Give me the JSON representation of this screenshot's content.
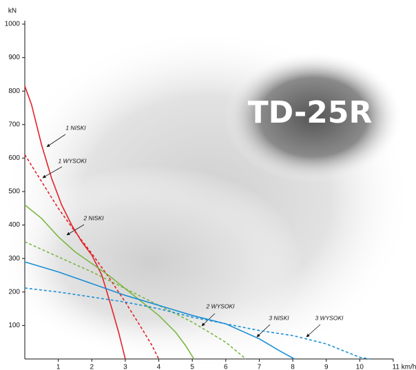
{
  "chart_data": {
    "type": "line",
    "title": "TD-25R",
    "y_label": "kN",
    "xlim": [
      0,
      11
    ],
    "ylim": [
      0,
      1000
    ],
    "xticks": [
      1,
      2,
      3,
      4,
      5,
      6,
      7,
      8,
      9,
      10,
      {
        "value": 11,
        "label": "11 km/h"
      }
    ],
    "yticks": [
      100,
      200,
      300,
      400,
      500,
      600,
      700,
      800,
      900,
      1000
    ],
    "series": [
      {
        "name": "1 NISKI",
        "color": "#e32129",
        "style": "solid",
        "x": [
          0,
          0.2,
          0.5,
          0.8,
          1.1,
          1.4,
          1.7,
          2.0,
          2.3,
          2.6,
          2.8,
          2.95,
          3.0
        ],
        "values": [
          815,
          760,
          640,
          540,
          460,
          400,
          350,
          310,
          250,
          150,
          80,
          20,
          0
        ]
      },
      {
        "name": "1 WYSOKI",
        "color": "#e32129",
        "style": "dashed",
        "x": [
          0,
          0.5,
          1,
          1.5,
          2,
          2.5,
          3,
          3.5,
          3.8,
          4
        ],
        "values": [
          610,
          530,
          450,
          380,
          315,
          245,
          170,
          90,
          40,
          0
        ]
      },
      {
        "name": "2 NISKI",
        "color": "#7ab640",
        "style": "solid",
        "x": [
          0,
          0.5,
          1,
          1.5,
          2,
          2.5,
          3,
          3.5,
          4,
          4.5,
          4.8,
          5.05
        ],
        "values": [
          460,
          420,
          365,
          320,
          285,
          250,
          210,
          170,
          130,
          80,
          40,
          0
        ]
      },
      {
        "name": "2 WYSOKI",
        "color": "#7ab640",
        "style": "dashed",
        "x": [
          0,
          1,
          2,
          3,
          4,
          5,
          6,
          6.6
        ],
        "values": [
          350,
          305,
          260,
          210,
          160,
          110,
          50,
          0
        ]
      },
      {
        "name": "3 NISKI",
        "color": "#1a8fd6",
        "style": "solid",
        "x": [
          0,
          1,
          2,
          3,
          4,
          5,
          6,
          7,
          7.6,
          8.05
        ],
        "values": [
          290,
          260,
          225,
          190,
          160,
          130,
          105,
          60,
          25,
          0
        ]
      },
      {
        "name": "3 WYSOKI",
        "color": "#1a8fd6",
        "style": "dashed",
        "x": [
          0,
          1,
          2,
          3,
          4,
          5,
          6,
          7,
          8,
          9,
          10,
          10.3
        ],
        "values": [
          212,
          200,
          185,
          170,
          150,
          125,
          105,
          85,
          70,
          45,
          5,
          0
        ]
      }
    ]
  }
}
